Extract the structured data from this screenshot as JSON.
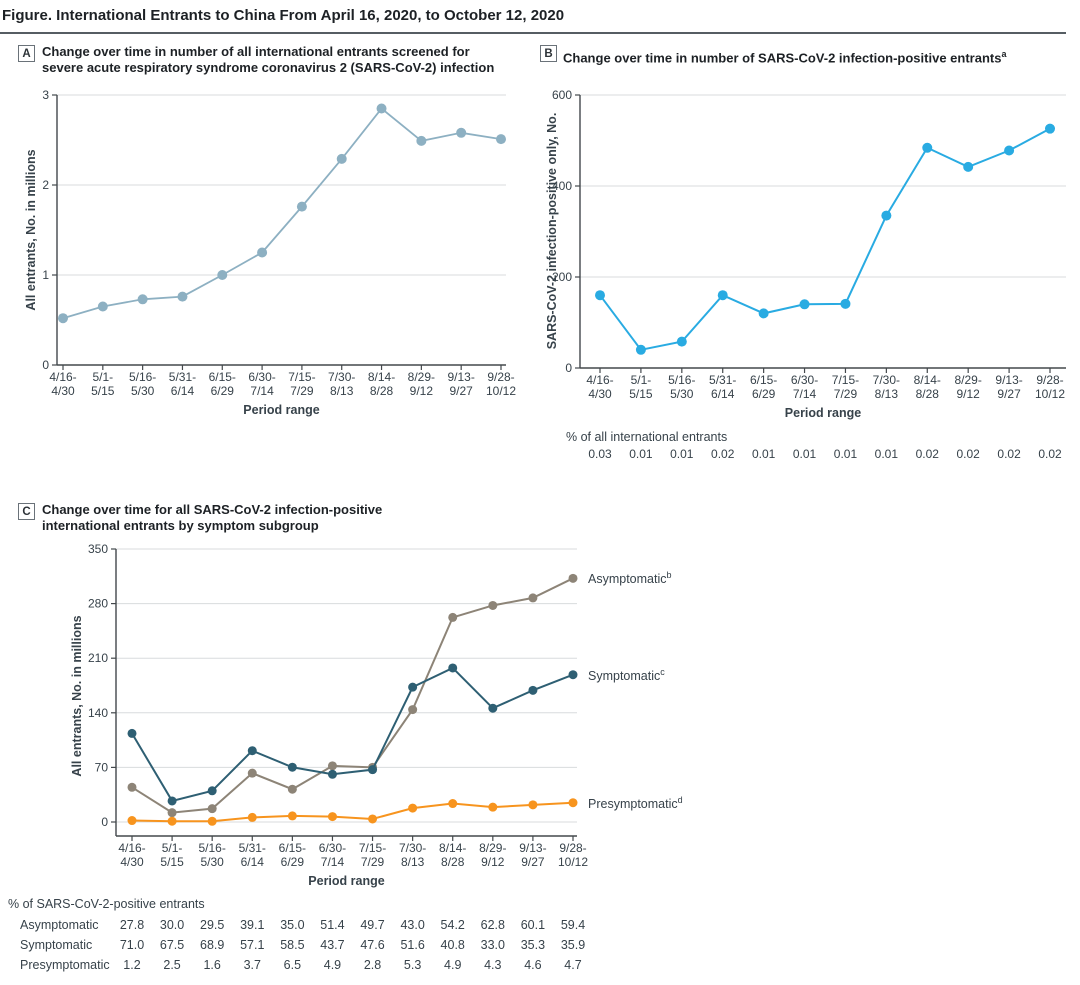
{
  "figure_title": "Figure. International Entrants to China From April 16, 2020, to October 12, 2020",
  "chart_data": [
    {
      "panel": "A",
      "type": "line",
      "title": "Change over time in number of all international entrants screened for severe acute respiratory syndrome coronavirus 2 (SARS-CoV-2) infection",
      "categories": [
        "4/16-4/30",
        "5/1-5/15",
        "5/16-5/30",
        "5/31-6/14",
        "6/15-6/29",
        "6/30-7/14",
        "7/15-7/29",
        "7/30-8/13",
        "8/14-8/28",
        "8/29-9/12",
        "9/13-9/27",
        "9/28-10/12"
      ],
      "values": [
        0.52,
        0.65,
        0.73,
        0.76,
        1.0,
        1.25,
        1.76,
        2.29,
        2.85,
        2.49,
        2.58,
        2.51
      ],
      "xlabel": "Period range",
      "ylabel": "All entrants, No. in millions",
      "ylim": [
        0,
        3
      ],
      "yticks": [
        0,
        1,
        2,
        3
      ],
      "line_color": "#8db0c2",
      "grid": true,
      "legend_position": "none"
    },
    {
      "panel": "B",
      "type": "line",
      "title": "Change over time in number of SARS-CoV-2 infection-positive entrants",
      "title_superscript": "a",
      "categories": [
        "4/16-4/30",
        "5/1-5/15",
        "5/16-5/30",
        "5/31-6/14",
        "6/15-6/29",
        "6/30-7/14",
        "7/15-7/29",
        "7/30-8/13",
        "8/14-8/28",
        "8/29-9/12",
        "9/13-9/27",
        "9/28-10/12"
      ],
      "values": [
        160,
        40,
        58,
        160,
        120,
        140,
        141,
        335,
        484,
        442,
        478,
        526
      ],
      "xlabel": "Period range",
      "ylabel": "SARS-CoV-2 infection-positive only, No.",
      "ylim": [
        0,
        600
      ],
      "yticks": [
        0,
        200,
        400,
        600
      ],
      "line_color": "#29abe2",
      "grid": true,
      "legend_position": "none",
      "footer": {
        "label": "% of all international entrants",
        "values": [
          "0.03",
          "0.01",
          "0.01",
          "0.02",
          "0.01",
          "0.01",
          "0.01",
          "0.01",
          "0.02",
          "0.02",
          "0.02",
          "0.02"
        ]
      }
    },
    {
      "panel": "C",
      "type": "line",
      "title": "Change over time for all SARS-CoV-2 infection-positive international entrants by symptom subgroup",
      "categories": [
        "4/16-4/30",
        "5/1-5/15",
        "5/16-5/30",
        "5/31-6/14",
        "6/15-6/29",
        "6/30-7/14",
        "7/15-7/29",
        "7/30-8/13",
        "8/14-8/28",
        "8/29-9/12",
        "9/13-9/27",
        "9/28-10/12"
      ],
      "series": [
        {
          "name": "Asymptomatic",
          "superscript": "b",
          "color": "#8d8477",
          "values": [
            44.5,
            12.0,
            17.1,
            62.6,
            42.0,
            72.0,
            70.1,
            144.1,
            262.3,
            277.6,
            287.3,
            312.4
          ]
        },
        {
          "name": "Symptomatic",
          "superscript": "c",
          "color": "#2e5f73",
          "values": [
            113.6,
            27.0,
            40.0,
            91.4,
            70.2,
            61.2,
            67.1,
            172.9,
            197.5,
            145.9,
            168.8,
            188.8
          ]
        },
        {
          "name": "Presymptomatic",
          "superscript": "d",
          "color": "#f7941e",
          "values": [
            1.9,
            1.0,
            0.9,
            5.9,
            7.8,
            6.9,
            3.9,
            17.8,
            23.7,
            19.0,
            22.0,
            24.7
          ]
        }
      ],
      "xlabel": "Period range",
      "ylabel": "All entrants, No. in millions",
      "ylim": [
        0,
        350
      ],
      "yticks": [
        0,
        70,
        140,
        210,
        280,
        350
      ],
      "grid": true,
      "legend_position": "right",
      "table": {
        "header": "% of SARS-CoV-2-positive entrants",
        "rows": [
          {
            "label": "Asymptomatic",
            "values": [
              "27.8",
              "30.0",
              "29.5",
              "39.1",
              "35.0",
              "51.4",
              "49.7",
              "43.0",
              "54.2",
              "62.8",
              "60.1",
              "59.4"
            ]
          },
          {
            "label": "Symptomatic",
            "values": [
              "71.0",
              "67.5",
              "68.9",
              "57.1",
              "58.5",
              "43.7",
              "47.6",
              "51.6",
              "40.8",
              "33.0",
              "35.3",
              "35.9"
            ]
          },
          {
            "label": "Presymptomatic",
            "values": [
              "1.2",
              "2.5",
              "1.6",
              "3.7",
              "6.5",
              "4.9",
              "2.8",
              "5.3",
              "4.9",
              "4.3",
              "4.6",
              "4.7"
            ]
          }
        ]
      }
    }
  ]
}
